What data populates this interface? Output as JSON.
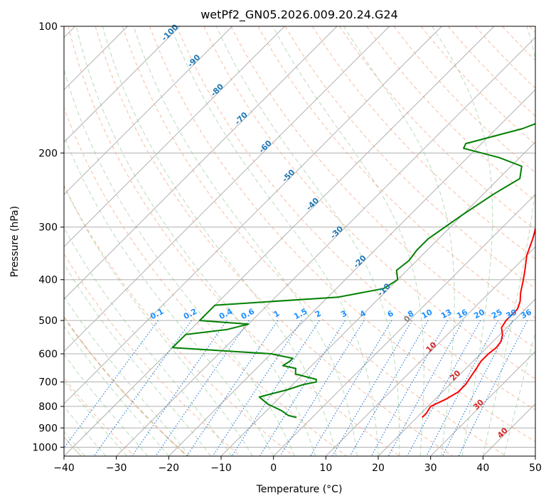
{
  "chart_data": {
    "type": "line",
    "title": "wetPf2_GN05.2026.009.20.24.G24",
    "xlabel": "Temperature (°C)",
    "ylabel": "Pressure (hPa)",
    "xlim": [
      -40,
      50
    ],
    "ylim": [
      1050,
      100
    ],
    "yscale": "log",
    "xticks": [
      -40,
      -30,
      -20,
      -10,
      0,
      10,
      20,
      30,
      40,
      50
    ],
    "yticks": [
      100,
      200,
      300,
      400,
      500,
      600,
      700,
      800,
      900,
      1000
    ],
    "grid": true,
    "skew_isotherm_labels": [
      -100,
      -90,
      -80,
      -70,
      -60,
      -50,
      -40,
      -30,
      -20,
      -10,
      0,
      10,
      20,
      30,
      40
    ],
    "mixing_ratio_labels": [
      "0.1",
      "0.2",
      "0.4",
      "0.6",
      "1",
      "1.5",
      "2",
      "3",
      "4",
      "6",
      "8",
      "10",
      "13",
      "16",
      "20",
      "25",
      "30",
      "36"
    ],
    "series": [
      {
        "color": "#ff0000",
        "points": [
          [
            100,
            3.0
          ],
          [
            120,
            3.3
          ],
          [
            140,
            5.0
          ],
          [
            160,
            7.0
          ],
          [
            180,
            7.0
          ],
          [
            200,
            5.5
          ],
          [
            220,
            4.0
          ],
          [
            240,
            3.0
          ],
          [
            260,
            3.3
          ],
          [
            290,
            5.5
          ],
          [
            320,
            8.0
          ],
          [
            350,
            10.0
          ],
          [
            380,
            12.5
          ],
          [
            400,
            14.0
          ],
          [
            430,
            16.0
          ],
          [
            450,
            17.5
          ],
          [
            470,
            18.5
          ],
          [
            500,
            18.5
          ],
          [
            520,
            19.0
          ],
          [
            540,
            20.5
          ],
          [
            560,
            21.5
          ],
          [
            580,
            21.8
          ],
          [
            600,
            21.5
          ],
          [
            625,
            21.5
          ],
          [
            650,
            22.0
          ],
          [
            680,
            22.5
          ],
          [
            710,
            23.0
          ],
          [
            740,
            23.0
          ],
          [
            770,
            22.0
          ],
          [
            800,
            20.5
          ],
          [
            830,
            21.0
          ],
          [
            850,
            21.0
          ]
        ]
      },
      {
        "color": "#008000",
        "points": [
          [
            100,
            -2.0
          ],
          [
            110,
            -5.0
          ],
          [
            120,
            -8.0
          ],
          [
            140,
            -9.0
          ],
          [
            160,
            -10.0
          ],
          [
            175,
            -15.0
          ],
          [
            190,
            -23.0
          ],
          [
            195,
            -22.5
          ],
          [
            205,
            -14.0
          ],
          [
            215,
            -8.0
          ],
          [
            230,
            -6.0
          ],
          [
            250,
            -8.0
          ],
          [
            280,
            -10.0
          ],
          [
            320,
            -12.0
          ],
          [
            340,
            -12.0
          ],
          [
            360,
            -11.5
          ],
          [
            380,
            -12.0
          ],
          [
            400,
            -10.0
          ],
          [
            420,
            -11.0
          ],
          [
            440,
            -18.0
          ],
          [
            460,
            -40.0
          ],
          [
            500,
            -40.0
          ],
          [
            510,
            -30.0
          ],
          [
            525,
            -33.0
          ],
          [
            540,
            -40.0
          ],
          [
            580,
            -40.0
          ],
          [
            600,
            -20.0
          ],
          [
            615,
            -15.0
          ],
          [
            625,
            -15.0
          ],
          [
            640,
            -15.5
          ],
          [
            650,
            -12.5
          ],
          [
            670,
            -11.5
          ],
          [
            690,
            -6.5
          ],
          [
            700,
            -6.0
          ],
          [
            710,
            -8.0
          ],
          [
            730,
            -10.0
          ],
          [
            760,
            -14.0
          ],
          [
            790,
            -11.0
          ],
          [
            820,
            -7.0
          ],
          [
            840,
            -5.0
          ],
          [
            850,
            -3.0
          ]
        ]
      }
    ]
  }
}
